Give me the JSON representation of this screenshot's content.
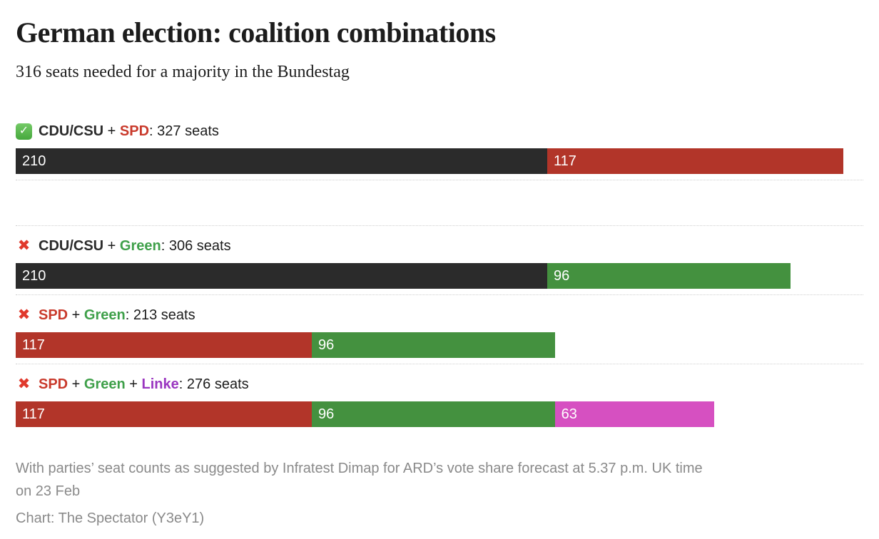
{
  "header": {
    "title": "German election: coalition combinations",
    "subtitle": "316 seats needed for a majority in the Bundestag"
  },
  "chart_data": {
    "type": "bar",
    "orientation": "horizontal-stacked",
    "unit": "seats",
    "majority_threshold": 316,
    "x_max": 327,
    "party_colors": {
      "CDU/CSU": "#2b2b2b",
      "SPD": "#b23529",
      "Green": "#44913f",
      "Linke": "#d650c1"
    },
    "rows": [
      {
        "majority": true,
        "total_seats": 327,
        "label_parts": [
          {
            "text": "CDU/CSU",
            "color": "#2b2b2b",
            "bold": true
          },
          {
            "text": " + ",
            "color": "#1c1c1c",
            "bold": false
          },
          {
            "text": "SPD",
            "color": "#c93a2c",
            "bold": true
          },
          {
            "text": ": 327 seats",
            "color": "#1c1c1c",
            "bold": false
          }
        ],
        "segments": [
          {
            "party": "CDU/CSU",
            "value": 210,
            "color": "#2b2b2b"
          },
          {
            "party": "SPD",
            "value": 117,
            "color": "#b23529"
          }
        ],
        "group_break_after": true
      },
      {
        "majority": false,
        "total_seats": 306,
        "label_parts": [
          {
            "text": "CDU/CSU",
            "color": "#2b2b2b",
            "bold": true
          },
          {
            "text": " + ",
            "color": "#1c1c1c",
            "bold": false
          },
          {
            "text": "Green",
            "color": "#3fa04a",
            "bold": true
          },
          {
            "text": ": 306 seats",
            "color": "#1c1c1c",
            "bold": false
          }
        ],
        "segments": [
          {
            "party": "CDU/CSU",
            "value": 210,
            "color": "#2b2b2b"
          },
          {
            "party": "Green",
            "value": 96,
            "color": "#44913f"
          }
        ],
        "group_break_after": false
      },
      {
        "majority": false,
        "total_seats": 213,
        "label_parts": [
          {
            "text": "SPD",
            "color": "#c93a2c",
            "bold": true
          },
          {
            "text": " + ",
            "color": "#1c1c1c",
            "bold": false
          },
          {
            "text": "Green",
            "color": "#3fa04a",
            "bold": true
          },
          {
            "text": ": 213 seats",
            "color": "#1c1c1c",
            "bold": false
          }
        ],
        "segments": [
          {
            "party": "SPD",
            "value": 117,
            "color": "#b23529"
          },
          {
            "party": "Green",
            "value": 96,
            "color": "#44913f"
          }
        ],
        "group_break_after": false
      },
      {
        "majority": false,
        "total_seats": 276,
        "label_parts": [
          {
            "text": "SPD",
            "color": "#c93a2c",
            "bold": true
          },
          {
            "text": " + ",
            "color": "#1c1c1c",
            "bold": false
          },
          {
            "text": "Green",
            "color": "#3fa04a",
            "bold": true
          },
          {
            "text": " + ",
            "color": "#1c1c1c",
            "bold": false
          },
          {
            "text": "Linke",
            "color": "#9a36c0",
            "bold": true
          },
          {
            "text": ": 276 seats",
            "color": "#1c1c1c",
            "bold": false
          }
        ],
        "segments": [
          {
            "party": "SPD",
            "value": 117,
            "color": "#b23529"
          },
          {
            "party": "Green",
            "value": 96,
            "color": "#44913f"
          },
          {
            "party": "Linke",
            "value": 63,
            "color": "#d650c1"
          }
        ],
        "group_break_after": false
      }
    ]
  },
  "icons": {
    "check": "✓",
    "cross": "✖"
  },
  "footer": {
    "note_lines": [
      "With parties’ seat counts as suggested by Infratest Dimap for ARD’s vote share forecast at 5.37 p.m. UK time",
      "on 23 Feb"
    ],
    "credit": "Chart: The Spectator (Y3eY1)"
  }
}
